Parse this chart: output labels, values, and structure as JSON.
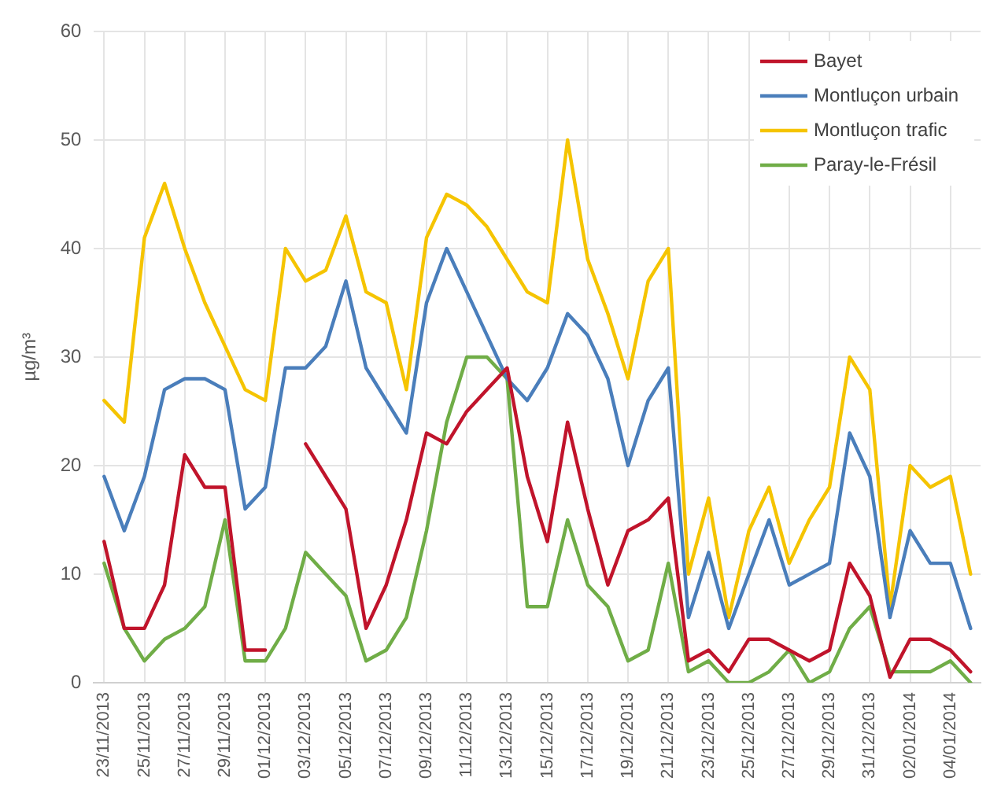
{
  "chart_data": {
    "type": "line",
    "ylabel": "µg/m³",
    "categories": [
      "23/11/2013",
      null,
      "25/11/2013",
      null,
      "27/11/2013",
      null,
      "29/11/2013",
      null,
      "01/12/2013",
      null,
      "03/12/2013",
      null,
      "05/12/2013",
      null,
      "07/12/2013",
      null,
      "09/12/2013",
      null,
      "11/12/2013",
      null,
      "13/12/2013",
      null,
      "15/12/2013",
      null,
      "17/12/2013",
      null,
      "19/12/2013",
      null,
      "21/12/2013",
      null,
      "23/12/2013",
      null,
      "25/12/2013",
      null,
      "27/12/2013",
      null,
      "29/12/2013",
      null,
      "31/12/2013",
      null,
      "02/01/2014",
      null,
      "04/01/2014",
      null
    ],
    "series": [
      {
        "name": "Bayet",
        "color": "#c0142b",
        "values": [
          13,
          5,
          5,
          9,
          21,
          18,
          18,
          3,
          3,
          null,
          22,
          19,
          16,
          5,
          9,
          15,
          23,
          22,
          25,
          27,
          29,
          19,
          13,
          24,
          16,
          9,
          14,
          15,
          17,
          2,
          3,
          1,
          4,
          4,
          3,
          2,
          3,
          11,
          8,
          0.5,
          4,
          4,
          3,
          1
        ]
      },
      {
        "name": "Montluçon urbain",
        "color": "#4a7ebb",
        "values": [
          19,
          14,
          19,
          27,
          28,
          28,
          27,
          16,
          18,
          29,
          29,
          31,
          37,
          29,
          26,
          23,
          35,
          40,
          36,
          32,
          28,
          26,
          29,
          34,
          32,
          28,
          20,
          26,
          29,
          6,
          12,
          5,
          10,
          15,
          9,
          10,
          11,
          23,
          19,
          6,
          14,
          11,
          11,
          5
        ]
      },
      {
        "name": "Montluçon trafic",
        "color": "#f5c400",
        "values": [
          26,
          24,
          41,
          46,
          40,
          35,
          31,
          27,
          26,
          40,
          37,
          38,
          43,
          36,
          35,
          27,
          41,
          45,
          44,
          42,
          39,
          36,
          35,
          50,
          39,
          34,
          28,
          37,
          40,
          10,
          17,
          6,
          14,
          18,
          11,
          15,
          18,
          30,
          27,
          7,
          20,
          18,
          19,
          10
        ]
      },
      {
        "name": "Paray-le-Frésil",
        "color": "#70ad47",
        "values": [
          11,
          5,
          2,
          4,
          5,
          7,
          15,
          2,
          2,
          5,
          12,
          10,
          8,
          2,
          3,
          6,
          14,
          24,
          30,
          30,
          28,
          7,
          7,
          15,
          9,
          7,
          2,
          3,
          11,
          1,
          2,
          0,
          0,
          1,
          3,
          0,
          1,
          5,
          7,
          1,
          1,
          1,
          2,
          0
        ]
      }
    ],
    "ylim": [
      0,
      60
    ],
    "yticks": [
      0,
      10,
      20,
      30,
      40,
      50,
      60
    ],
    "grid": true,
    "legend": "top right",
    "marker": "none",
    "line_style": "solid"
  }
}
